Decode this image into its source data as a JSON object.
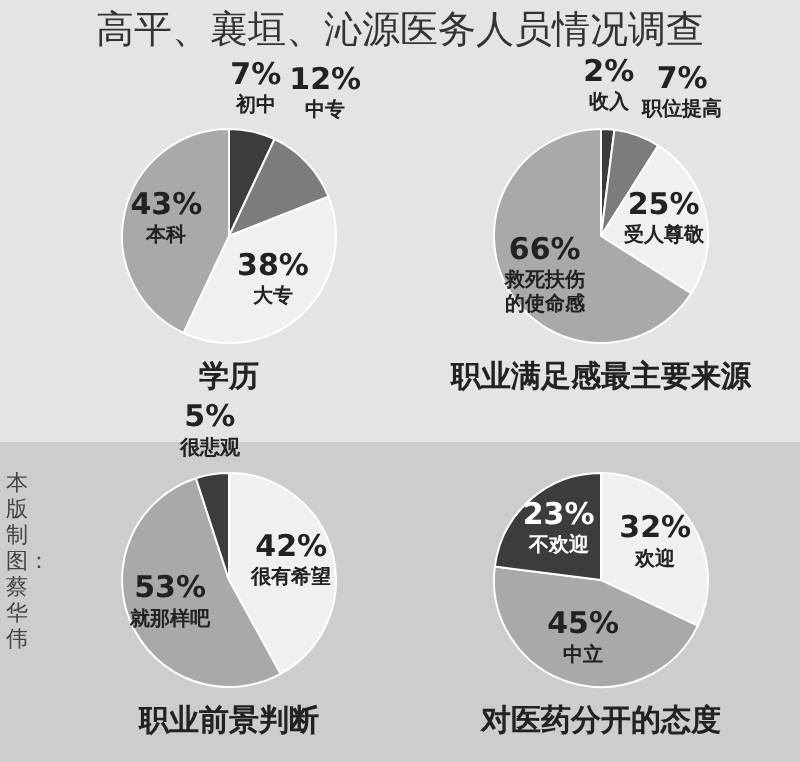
{
  "chart_data": [
    {
      "type": "pie",
      "title": "学历",
      "categories": [
        "初中",
        "中专",
        "大专",
        "本科"
      ],
      "values": [
        7,
        12,
        38,
        43
      ],
      "value_labels": [
        "7%",
        "12%",
        "38%",
        "43%"
      ],
      "colors": [
        "#3c3c3c",
        "#7c7c7c",
        "#f0f0f0",
        "#a9a9a9"
      ],
      "annotations": [
        "高平、襄垣、沁源医务人员情况调查"
      ]
    },
    {
      "type": "pie",
      "title": "职业满足感最主要来源",
      "categories": [
        "收入",
        "职位提高",
        "受人尊敬",
        "救死扶伤的使命感"
      ],
      "values": [
        2,
        7,
        25,
        66
      ],
      "value_labels": [
        "2%",
        "7%",
        "25%",
        "66%"
      ],
      "colors": [
        "#3c3c3c",
        "#7c7c7c",
        "#f0f0f0",
        "#a9a9a9"
      ]
    },
    {
      "type": "pie",
      "title": "职业前景判断",
      "categories": [
        "很有希望",
        "就那样吧",
        "很悲观"
      ],
      "values": [
        42,
        53,
        5
      ],
      "value_labels": [
        "42%",
        "53%",
        "5%"
      ],
      "colors": [
        "#f0f0f0",
        "#a9a9a9",
        "#3c3c3c"
      ],
      "annotations": [
        "本版制图：蔡华伟"
      ]
    },
    {
      "type": "pie",
      "title": "对医药分开的态度",
      "categories": [
        "欢迎",
        "中立",
        "不欢迎"
      ],
      "values": [
        32,
        45,
        23
      ],
      "value_labels": [
        "32%",
        "45%",
        "23%"
      ],
      "colors": [
        "#f0f0f0",
        "#a9a9a9",
        "#3c3c3c"
      ]
    }
  ]
}
